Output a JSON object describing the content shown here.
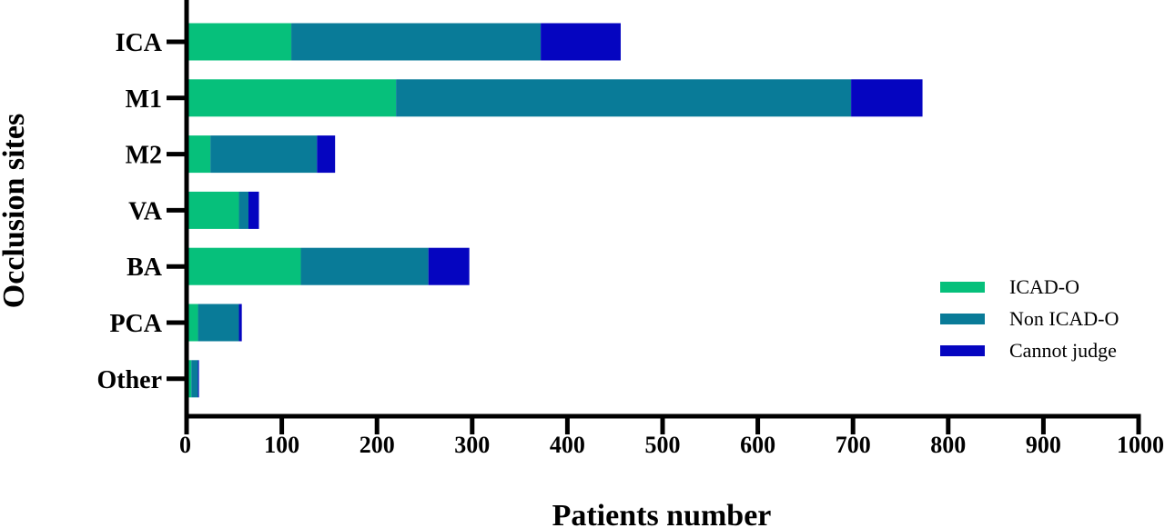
{
  "chart_data": {
    "type": "bar",
    "orientation": "horizontal",
    "stacked": true,
    "categories": [
      "ICA",
      "M1",
      "M2",
      "VA",
      "BA",
      "PCA",
      "Other"
    ],
    "series": [
      {
        "name": "ICAD-O",
        "color": "#06c07b",
        "values": [
          110,
          220,
          25,
          55,
          120,
          12,
          5
        ]
      },
      {
        "name": "Non ICAD-O",
        "color": "#097b98",
        "values": [
          262,
          478,
          112,
          10,
          134,
          43,
          7
        ]
      },
      {
        "name": "Cannot judge",
        "color": "#0505c0",
        "values": [
          84,
          75,
          19,
          11,
          43,
          3,
          1
        ]
      }
    ],
    "xlabel": "Patients number",
    "ylabel": "Occlusion sites",
    "xlim": [
      0,
      1000
    ],
    "xticks": [
      0,
      100,
      200,
      300,
      400,
      500,
      600,
      700,
      800,
      900,
      1000
    ],
    "grid": false,
    "legend_position": "bottom-right"
  }
}
